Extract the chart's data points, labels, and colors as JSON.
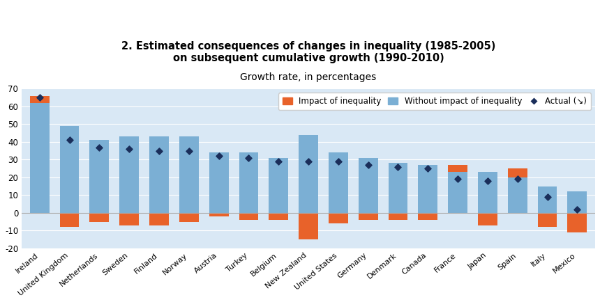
{
  "title_line1": "2. Estimated consequences of changes in inequality (1985-2005)",
  "title_line2": "on subsequent cumulative growth (1990-2010)",
  "subtitle": "Growth rate, in percentages",
  "countries": [
    "Ireland",
    "United Kingdom",
    "Netherlands",
    "Sweden",
    "Finland",
    "Norway",
    "Austria",
    "Turkey",
    "Belgium",
    "New Zealand",
    "United States",
    "Germany",
    "Denmark",
    "Canada",
    "France",
    "Japan",
    "Spain",
    "Italy",
    "Mexico"
  ],
  "without_impact": [
    62,
    49,
    41,
    43,
    43,
    43,
    34,
    34,
    31,
    44,
    34,
    31,
    28,
    27,
    23,
    23,
    20,
    15,
    12
  ],
  "impact_of_inequality": [
    4,
    -8,
    -5,
    -7,
    -7,
    -5,
    -2,
    -4,
    -4,
    -15,
    -6,
    -4,
    -4,
    -4,
    4,
    -7,
    5,
    -8,
    -11
  ],
  "actual": [
    65,
    41,
    37,
    36,
    35,
    35,
    32,
    31,
    29,
    29,
    29,
    27,
    26,
    25,
    19,
    18,
    19,
    9,
    2
  ],
  "bar_color_without": "#7BAFD4",
  "bar_color_impact": "#E8622A",
  "actual_color": "#1a2e5a",
  "ylim": [
    -20,
    70
  ],
  "yticks": [
    -20,
    -10,
    0,
    10,
    20,
    30,
    40,
    50,
    60,
    70
  ],
  "background_color": "#d9e8f5",
  "fig_background": "#ffffff",
  "legend_impact": "Impact of inequality",
  "legend_without": "Without impact of inequality",
  "legend_actual": "Actual (↘)",
  "title_fontsize": 10.5,
  "subtitle_fontsize": 10,
  "bar_width": 0.65
}
